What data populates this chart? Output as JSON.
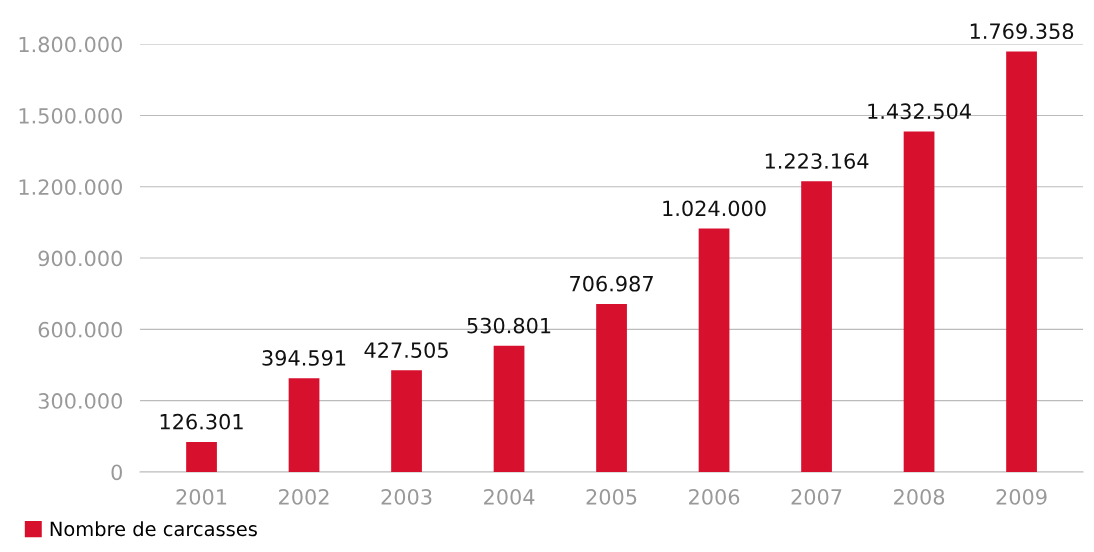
{
  "chart_data": {
    "type": "bar",
    "categories": [
      "2001",
      "2002",
      "2003",
      "2004",
      "2005",
      "2006",
      "2007",
      "2008",
      "2009"
    ],
    "series": [
      {
        "name": "Nombre de carcasses",
        "color": "#d7102e",
        "values": [
          126301,
          394591,
          427505,
          530801,
          706987,
          1024000,
          1223164,
          1432504,
          1769358
        ],
        "value_labels": [
          "126.301",
          "394.591",
          "427.505",
          "530.801",
          "706.987",
          "1.024.000",
          "1.223.164",
          "1.432.504",
          "1.769.358"
        ]
      }
    ],
    "ylim": [
      0,
      1800000
    ],
    "yticks": [
      {
        "value": 0,
        "label": "0"
      },
      {
        "value": 300000,
        "label": "300.000"
      },
      {
        "value": 600000,
        "label": "600.000"
      },
      {
        "value": 900000,
        "label": "900.000"
      },
      {
        "value": 1200000,
        "label": "1.200.000"
      },
      {
        "value": 1500000,
        "label": "1.500.000"
      },
      {
        "value": 1800000,
        "label": "1.800.000"
      }
    ],
    "grid": "y",
    "legend": "bottom left"
  }
}
